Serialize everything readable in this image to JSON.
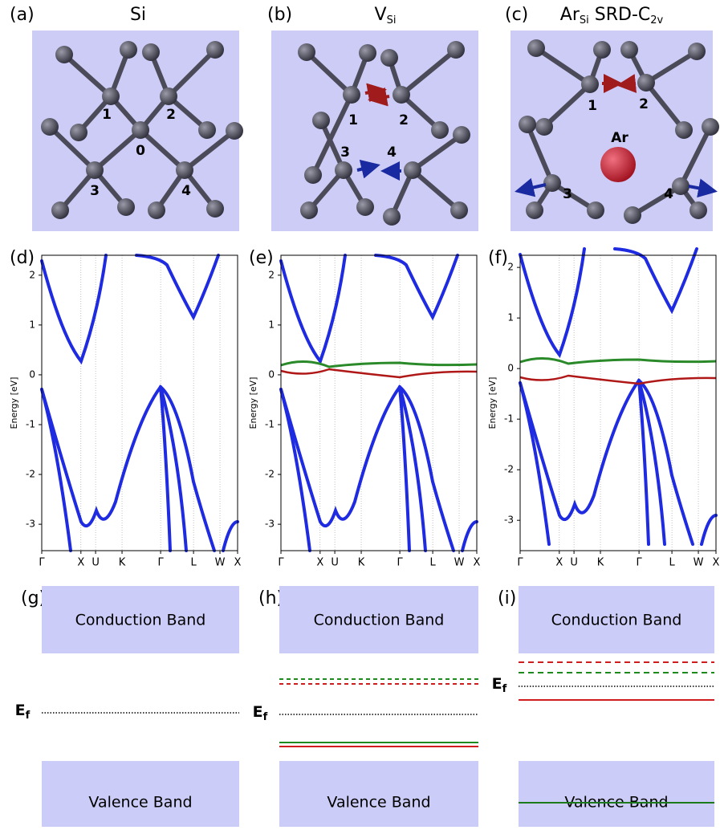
{
  "structure_panels": [
    {
      "label": "(a)",
      "title": [
        {
          "text": "Si"
        }
      ],
      "atoms": [
        "1",
        "2",
        "0",
        "3",
        "4"
      ]
    },
    {
      "label": "(b)",
      "title": [
        {
          "text": "V"
        },
        {
          "text": "Si",
          "sub": true
        }
      ],
      "atoms": [
        "1",
        "2",
        "3",
        "4"
      ]
    },
    {
      "label": "(c)",
      "title": [
        {
          "text": "Ar"
        },
        {
          "text": "Si",
          "sub": true
        },
        {
          "text": " SRD-C"
        },
        {
          "text": "2v",
          "sub": true
        }
      ],
      "atoms": [
        "1",
        "2",
        "Ar",
        "3",
        "4"
      ]
    }
  ],
  "band_panels": [
    {
      "label": "(d)",
      "ylabel": "Energy [eV]",
      "ylim": [
        -3.53,
        2.4
      ],
      "yticks": [
        -3,
        -2,
        -1,
        0,
        1,
        2
      ],
      "kpoints": [
        "Γ",
        "X",
        "U",
        "K",
        "Γ",
        "L",
        "W",
        "X"
      ]
    },
    {
      "label": "(e)",
      "ylabel": "Energy [eV]",
      "ylim": [
        -3.53,
        2.4
      ],
      "yticks": [
        -3,
        -2,
        -1,
        0,
        1,
        2
      ],
      "kpoints": [
        "Γ",
        "X",
        "U",
        "K",
        "Γ",
        "L",
        "W",
        "X"
      ]
    },
    {
      "label": "(f)",
      "ylabel": "Energy [eV]",
      "ylim": [
        -3.6,
        2.24
      ],
      "yticks": [
        -3,
        -2,
        -1,
        0,
        1,
        2
      ],
      "kpoints": [
        "Γ",
        "X",
        "U",
        "K",
        "Γ",
        "L",
        "W",
        "X"
      ]
    }
  ],
  "level_panels": [
    {
      "label": "(g)",
      "conduction": "Conduction Band",
      "valence": "Valence Band",
      "fermi": "E",
      "fermi_sub": "f"
    },
    {
      "label": "(h)",
      "conduction": "Conduction Band",
      "valence": "Valence Band",
      "fermi": "E",
      "fermi_sub": "f"
    },
    {
      "label": "(i)",
      "conduction": "Conduction Band",
      "valence": "Valence Band",
      "fermi": "E",
      "fermi_sub": "f"
    }
  ]
}
